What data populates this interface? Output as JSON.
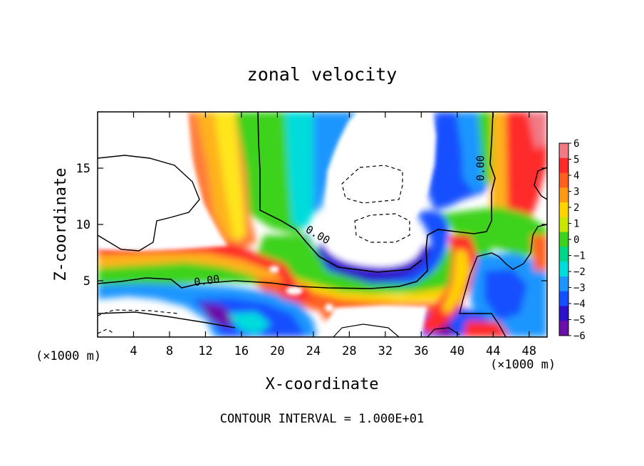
{
  "chart_data": {
    "type": "heatmap",
    "title": "zonal velocity",
    "xlabel": "X-coordinate",
    "ylabel": "Z-coordinate",
    "x_unit": "(×1000 m)",
    "y_unit": "(×1000 m)",
    "footer": "CONTOUR INTERVAL = 1.000E+01",
    "xlim": [
      0,
      50
    ],
    "ylim": [
      0,
      20
    ],
    "x_ticks": [
      "4",
      "8",
      "12",
      "16",
      "20",
      "24",
      "28",
      "32",
      "36",
      "40",
      "44",
      "48"
    ],
    "y_ticks": [
      "5",
      "10",
      "15"
    ],
    "colorbar": {
      "min": -6,
      "max": 6,
      "labels": [
        "6",
        "5",
        "4",
        "3",
        "2",
        "1",
        "0",
        "−1",
        "−2",
        "−3",
        "−4",
        "−5",
        "−6"
      ],
      "colors": [
        "#f07a86",
        "#ff2a2a",
        "#ff6020",
        "#ff9a14",
        "#ffd400",
        "#c8e600",
        "#3cd21e",
        "#00d68a",
        "#00dcdc",
        "#1e96ff",
        "#1450ff",
        "#2e12c8",
        "#6a10a8"
      ]
    },
    "contour_labels": [
      {
        "text": "0.00",
        "x": 12.2,
        "z": 4.7
      },
      {
        "text": "0.00",
        "x": 24.3,
        "z": 8.8
      },
      {
        "text": "0.00",
        "x": 43.0,
        "z": 15.0
      }
    ],
    "grid": false,
    "legend": "colorbar-right"
  }
}
